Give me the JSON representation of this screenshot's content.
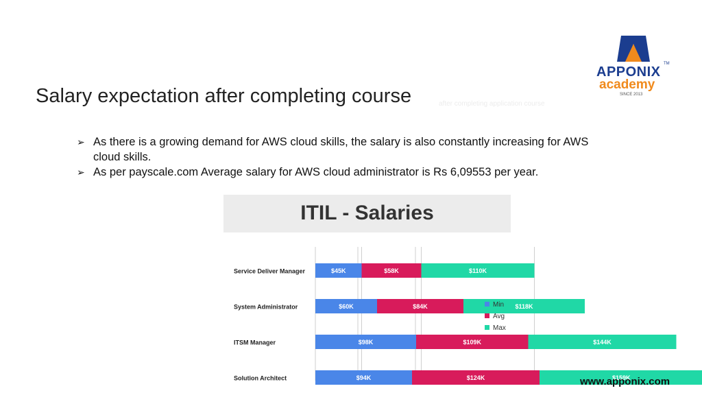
{
  "slide": {
    "title": "Salary expectation after completing course",
    "ghost_text": "after completing application course",
    "bullets": [
      "As there is a growing demand for AWS cloud skills, the salary is also constantly increasing for AWS cloud skills.",
      "As per payscale.com Average salary for AWS cloud administrator is Rs 6,09553 per year."
    ],
    "footer": "www.apponix.com"
  },
  "logo": {
    "brand": "APPONIX",
    "tm": "TM",
    "sub": "academy",
    "since": "SINCE 2013",
    "colors": {
      "blue": "#1b3d8f",
      "orange": "#f08a1c"
    }
  },
  "chart_data": {
    "type": "bar",
    "stacked": true,
    "orientation": "horizontal",
    "title": "ITIL - Salaries",
    "categories": [
      "Service Deliver Manager",
      "System Administrator",
      "ITSM Manager",
      "Solution Architect"
    ],
    "series": [
      {
        "name": "Min",
        "color": "#4a86e8",
        "values": [
          45,
          60,
          98,
          94
        ],
        "labels": [
          "$45K",
          "$60K",
          "$98K",
          "$94K"
        ]
      },
      {
        "name": "Avg",
        "color": "#d81b5b",
        "values": [
          58,
          84,
          109,
          124
        ],
        "labels": [
          "$58K",
          "$84K",
          "$109K",
          "$124K"
        ]
      },
      {
        "name": "Max",
        "color": "#20d8a6",
        "values": [
          110,
          118,
          144,
          159
        ],
        "labels": [
          "$110K",
          "$118K",
          "$144K",
          "$159K"
        ]
      }
    ],
    "legend": "right",
    "grid": true
  }
}
